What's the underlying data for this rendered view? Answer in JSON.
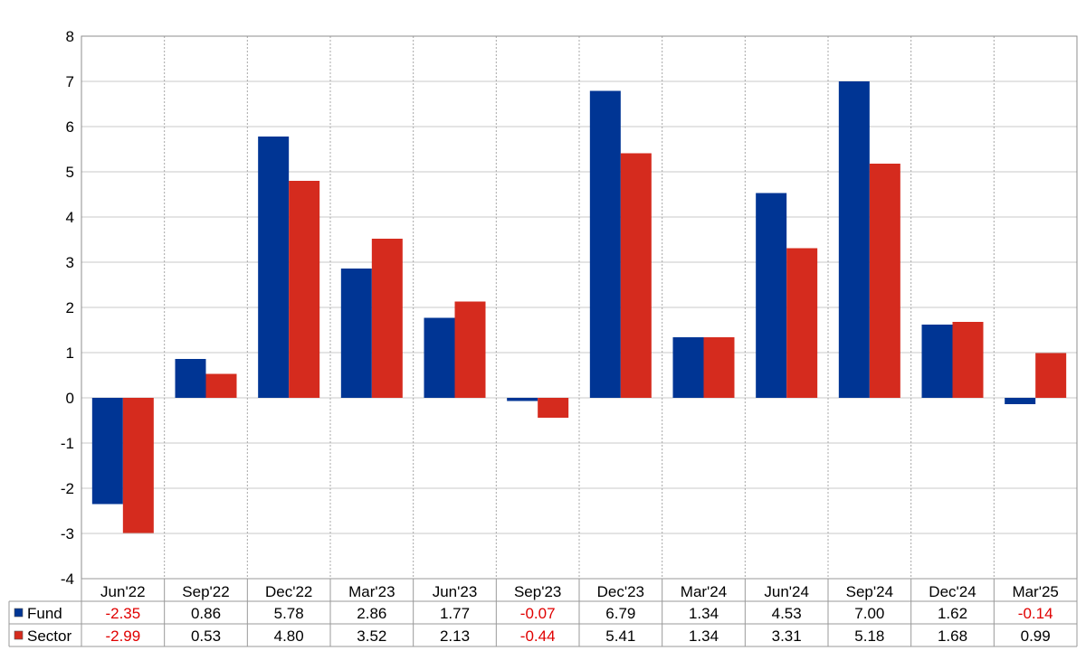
{
  "chart_data": {
    "type": "bar",
    "title": "",
    "xlabel": "",
    "ylabel": "",
    "ylim": [
      -4,
      8
    ],
    "yticks": [
      -4,
      -3,
      -2,
      -1,
      0,
      1,
      2,
      3,
      4,
      5,
      6,
      7,
      8
    ],
    "grid": true,
    "legend": "data-table-left",
    "categories": [
      "Jun'22",
      "Sep'22",
      "Dec'22",
      "Mar'23",
      "Jun'23",
      "Sep'23",
      "Dec'23",
      "Mar'24",
      "Jun'24",
      "Sep'24",
      "Dec'24",
      "Mar'25"
    ],
    "series": [
      {
        "name": "Fund",
        "color": "#003594",
        "values": [
          -2.35,
          0.86,
          5.78,
          2.86,
          1.77,
          -0.07,
          6.79,
          1.34,
          4.53,
          7.0,
          1.62,
          -0.14
        ],
        "labels": [
          "-2.35",
          "0.86",
          "5.78",
          "2.86",
          "1.77",
          "-0.07",
          "6.79",
          "1.34",
          "4.53",
          "7.00",
          "1.62",
          "-0.14"
        ]
      },
      {
        "name": "Sector",
        "color": "#d52b1e",
        "values": [
          -2.99,
          0.53,
          4.8,
          3.52,
          2.13,
          -0.44,
          5.41,
          1.34,
          3.31,
          5.18,
          1.68,
          0.99
        ],
        "labels": [
          "-2.99",
          "0.53",
          "4.80",
          "3.52",
          "2.13",
          "-0.44",
          "5.41",
          "1.34",
          "3.31",
          "5.18",
          "1.68",
          "0.99"
        ]
      }
    ],
    "negative_label_color": "#e00000"
  }
}
